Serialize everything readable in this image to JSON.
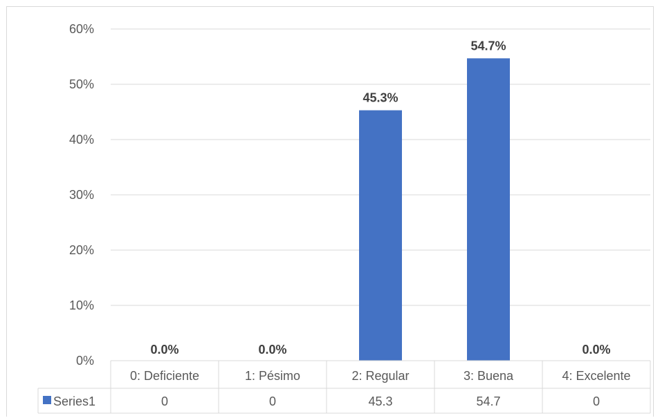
{
  "chart_data": {
    "type": "bar",
    "categories": [
      "0: Deficiente",
      "1: Pésimo",
      "2: Regular",
      "3: Buena",
      "4: Excelente"
    ],
    "series": [
      {
        "name": "Series1",
        "values": [
          0,
          0,
          45.3,
          54.7,
          0
        ],
        "color": "#4472c4"
      }
    ],
    "data_labels": [
      "0.0%",
      "0.0%",
      "45.3%",
      "54.7%",
      "0.0%"
    ],
    "table_values": [
      "0",
      "0",
      "45.3",
      "54.7",
      "0"
    ],
    "y_ticks": [
      "0%",
      "10%",
      "20%",
      "30%",
      "40%",
      "50%",
      "60%"
    ],
    "ylim": [
      0,
      60
    ],
    "grid": true,
    "data_table": true,
    "gridline_color": "#d9d9d9",
    "text_color": "#595959"
  }
}
